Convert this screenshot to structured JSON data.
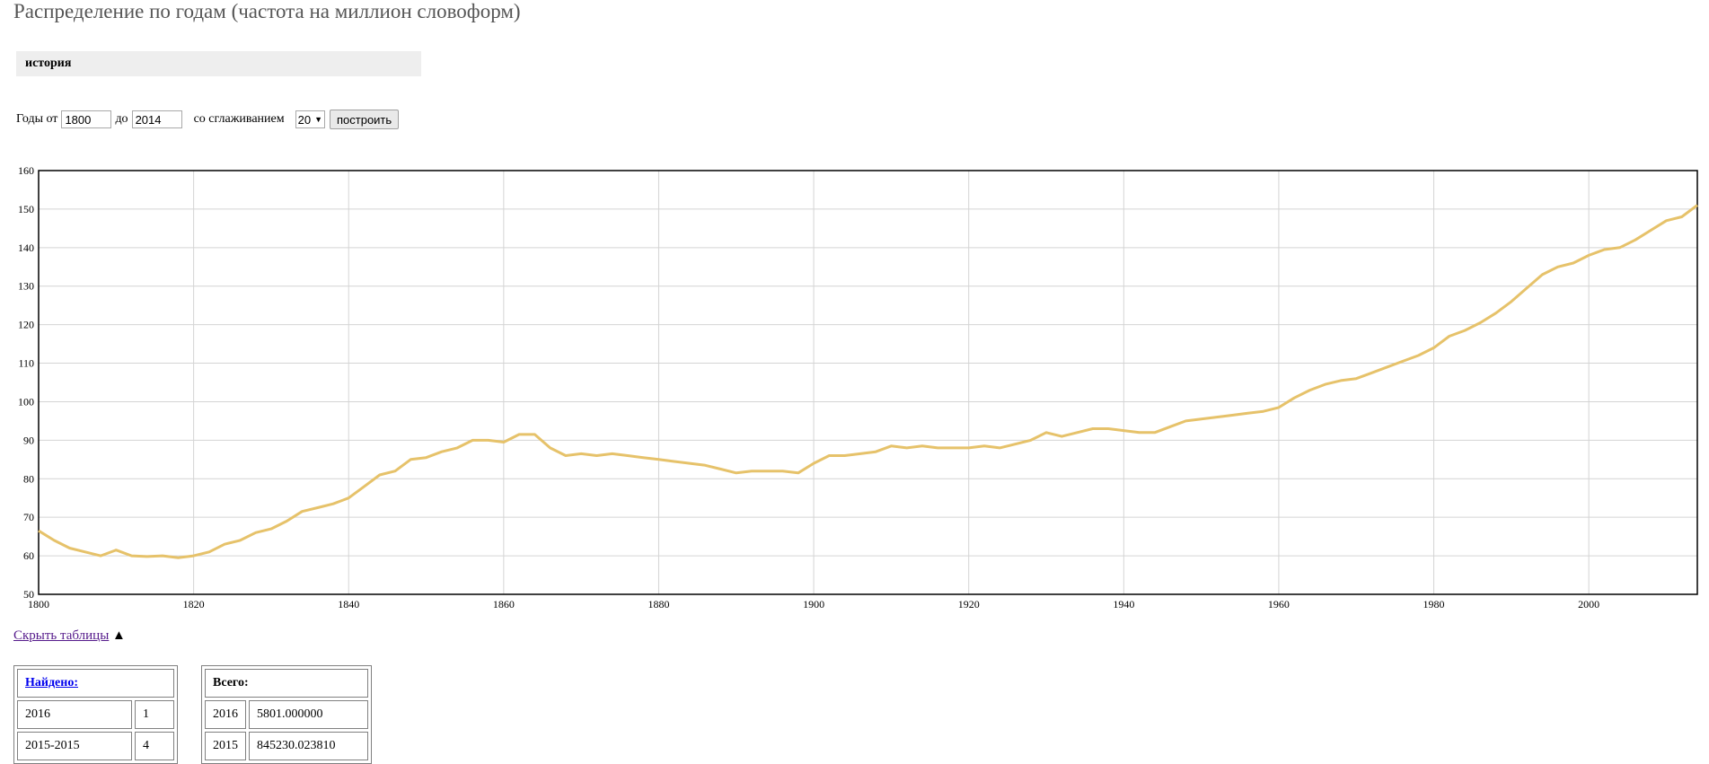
{
  "page": {
    "title": "Распределение по годам (частота на миллион словоформ)",
    "query": "история"
  },
  "controls": {
    "from_label": "Годы от",
    "from_value": "1800",
    "to_label": "до",
    "to_value": "2014",
    "smoothing_label": "со сглаживанием",
    "smoothing_value": "20",
    "build_label": "построить"
  },
  "colors": {
    "line": "#e6c26a",
    "grid": "#d4d4d4",
    "frame": "#000000"
  },
  "chart_data": {
    "type": "line",
    "title": "",
    "xlabel": "",
    "ylabel": "",
    "xlim": [
      1800,
      2014
    ],
    "ylim": [
      50,
      160
    ],
    "x_ticks": [
      1800,
      1820,
      1840,
      1860,
      1880,
      1900,
      1920,
      1940,
      1960,
      1980,
      2000
    ],
    "y_ticks": [
      50,
      60,
      70,
      80,
      90,
      100,
      110,
      120,
      130,
      140,
      150,
      160
    ],
    "grid": true,
    "legend": "none",
    "series": [
      {
        "x": [
          1800,
          1802,
          1804,
          1806,
          1808,
          1810,
          1812,
          1814,
          1816,
          1818,
          1820,
          1822,
          1824,
          1826,
          1828,
          1830,
          1832,
          1834,
          1836,
          1838,
          1840,
          1842,
          1844,
          1846,
          1848,
          1850,
          1852,
          1854,
          1856,
          1858,
          1860,
          1862,
          1864,
          1866,
          1868,
          1870,
          1872,
          1874,
          1876,
          1878,
          1880,
          1882,
          1884,
          1886,
          1888,
          1890,
          1892,
          1894,
          1896,
          1898,
          1900,
          1902,
          1904,
          1906,
          1908,
          1910,
          1912,
          1914,
          1916,
          1918,
          1920,
          1922,
          1924,
          1926,
          1928,
          1930,
          1932,
          1934,
          1936,
          1938,
          1940,
          1942,
          1944,
          1946,
          1948,
          1950,
          1952,
          1954,
          1956,
          1958,
          1960,
          1962,
          1964,
          1966,
          1968,
          1970,
          1972,
          1974,
          1976,
          1978,
          1980,
          1982,
          1984,
          1986,
          1988,
          1990,
          1992,
          1994,
          1996,
          1998,
          2000,
          2002,
          2004,
          2006,
          2008,
          2010,
          2012,
          2014
        ],
        "y": [
          66.5,
          64,
          62,
          61,
          60,
          61.5,
          60,
          59.8,
          60,
          59.5,
          60,
          61,
          63,
          64,
          66,
          67,
          69,
          71.5,
          72.5,
          73.5,
          75,
          78,
          81,
          82,
          85,
          85.5,
          87,
          88,
          90,
          90,
          89.5,
          91.5,
          91.5,
          88,
          86,
          86.5,
          86,
          86.5,
          86,
          85.5,
          85,
          84.5,
          84,
          83.5,
          82.5,
          81.5,
          82,
          82,
          82,
          81.5,
          84,
          86,
          86,
          86.5,
          87,
          88.5,
          88,
          88.5,
          88,
          88,
          88,
          88.5,
          88,
          89,
          90,
          92,
          91,
          92,
          93,
          93,
          92.5,
          92,
          92,
          93.5,
          95,
          95.5,
          96,
          96.5,
          97,
          97.5,
          98.5,
          101,
          103,
          104.5,
          105.5,
          106,
          107.5,
          109,
          110.5,
          112,
          114,
          117,
          118.5,
          120.5,
          123,
          126,
          129.5,
          133,
          135,
          136,
          138,
          139.5,
          140,
          142,
          144.5,
          147,
          148,
          151
        ]
      }
    ]
  },
  "toggle": {
    "label": "Скрыть таблицы",
    "arrow": "▲"
  },
  "tables": {
    "found": {
      "header": "Найдено:",
      "rows": [
        {
          "period": "2016",
          "count": "1"
        },
        {
          "period": "2015-2015",
          "count": "4"
        }
      ]
    },
    "total": {
      "header": "Всего:",
      "rows": [
        {
          "year": "2016",
          "value": "5801.000000"
        },
        {
          "year": "2015",
          "value": "845230.023810"
        }
      ]
    }
  }
}
